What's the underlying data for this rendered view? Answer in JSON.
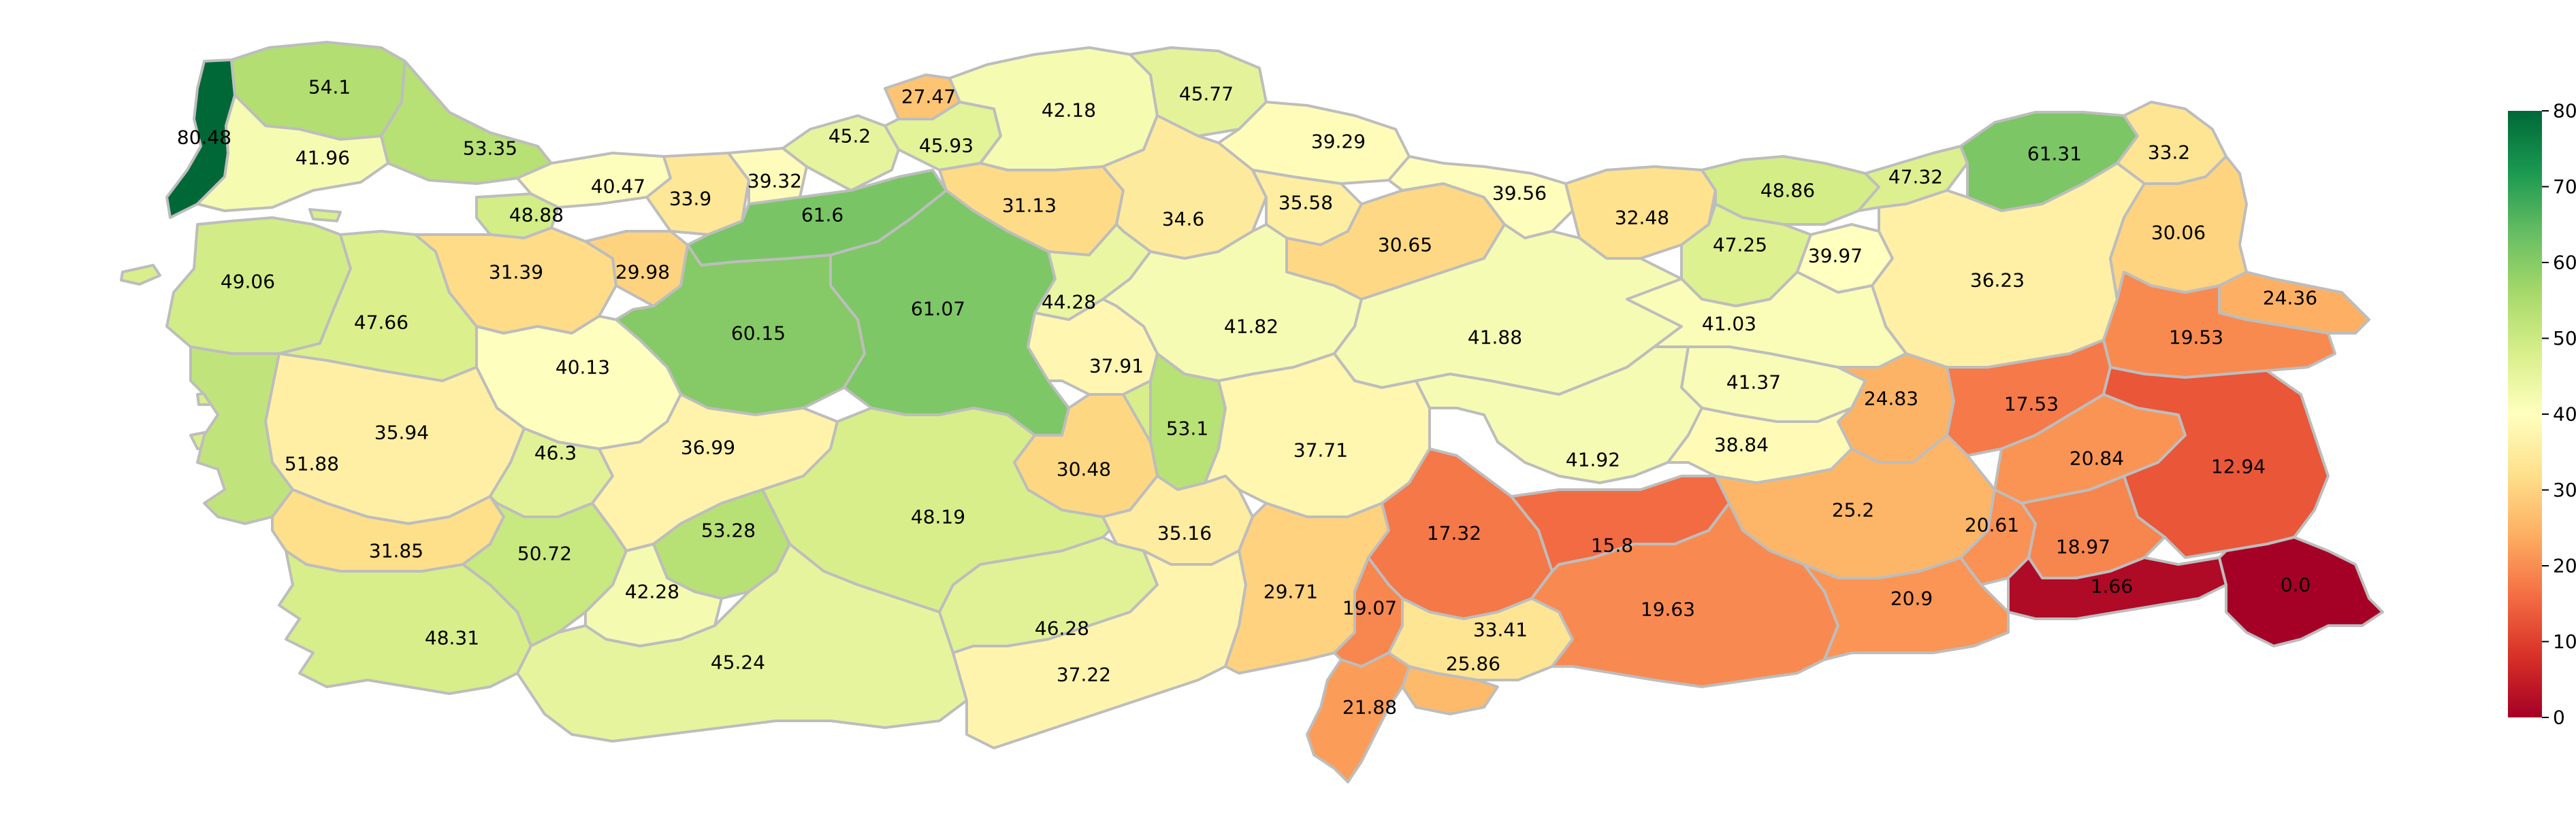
{
  "map": {
    "provinces": [
      {
        "name": "Edirne",
        "value": 80.48,
        "label": "80.48"
      },
      {
        "name": "Kirklareli",
        "value": 54.1,
        "label": "54.1"
      },
      {
        "name": "Tekirdag",
        "value": 41.96,
        "label": "41.96"
      },
      {
        "name": "Istanbul",
        "value": 53.35,
        "label": "53.35"
      },
      {
        "name": "Kocaeli",
        "value": 40.47,
        "label": "40.47"
      },
      {
        "name": "Sakarya",
        "value": 33.9,
        "label": "33.9"
      },
      {
        "name": "Duzce",
        "value": 39.32,
        "label": "39.32"
      },
      {
        "name": "Yalova",
        "value": 48.88,
        "label": "48.88"
      },
      {
        "name": "Canakkale",
        "value": 49.06,
        "label": "49.06"
      },
      {
        "name": "Balikesir",
        "value": 47.66,
        "label": "47.66"
      },
      {
        "name": "Bursa",
        "value": 31.39,
        "label": "31.39"
      },
      {
        "name": "Bilecik",
        "value": 29.98,
        "label": "29.98"
      },
      {
        "name": "Bolu",
        "value": 61.6,
        "label": "61.6"
      },
      {
        "name": "Zonguldak",
        "value": 45.2,
        "label": "45.2"
      },
      {
        "name": "Bartin",
        "value": 27.47,
        "label": "27.47"
      },
      {
        "name": "Karabuk",
        "value": 45.93,
        "label": "45.93"
      },
      {
        "name": "Kastamonu",
        "value": 42.18,
        "label": "42.18"
      },
      {
        "name": "Sinop",
        "value": 45.77,
        "label": "45.77"
      },
      {
        "name": "Samsun",
        "value": 39.29,
        "label": "39.29"
      },
      {
        "name": "Cankiri",
        "value": 31.13,
        "label": "31.13"
      },
      {
        "name": "Corum",
        "value": 34.6,
        "label": "34.6"
      },
      {
        "name": "Amasya",
        "value": 35.58,
        "label": "35.58"
      },
      {
        "name": "Tokat",
        "value": 30.65,
        "label": "30.65"
      },
      {
        "name": "Ordu",
        "value": 39.56,
        "label": "39.56"
      },
      {
        "name": "Giresun",
        "value": 32.48,
        "label": "32.48"
      },
      {
        "name": "Trabzon",
        "value": 48.86,
        "label": "48.86"
      },
      {
        "name": "Rize",
        "value": 47.32,
        "label": "47.32"
      },
      {
        "name": "Artvin",
        "value": 61.31,
        "label": "61.31"
      },
      {
        "name": "Ardahan",
        "value": 33.2,
        "label": "33.2"
      },
      {
        "name": "Gumushane",
        "value": 47.25,
        "label": "47.25"
      },
      {
        "name": "Bayburt",
        "value": 39.97,
        "label": "39.97"
      },
      {
        "name": "Erzurum",
        "value": 36.23,
        "label": "36.23"
      },
      {
        "name": "Kars",
        "value": 30.06,
        "label": "30.06"
      },
      {
        "name": "Igdir",
        "value": 24.36,
        "label": "24.36"
      },
      {
        "name": "Agri",
        "value": 19.53,
        "label": "19.53"
      },
      {
        "name": "Eskisehir",
        "value": 60.15,
        "label": "60.15"
      },
      {
        "name": "Ankara",
        "value": 61.07,
        "label": "61.07"
      },
      {
        "name": "Kirikkale",
        "value": 44.28,
        "label": "44.28"
      },
      {
        "name": "Yozgat",
        "value": 41.82,
        "label": "41.82"
      },
      {
        "name": "Sivas",
        "value": 41.88,
        "label": "41.88"
      },
      {
        "name": "Erzincan",
        "value": 41.03,
        "label": "41.03"
      },
      {
        "name": "Kirsehir",
        "value": 37.91,
        "label": "37.91"
      },
      {
        "name": "Nevsehir",
        "value": 53.1,
        "label": "53.1"
      },
      {
        "name": "Kayseri",
        "value": 37.71,
        "label": "37.71"
      },
      {
        "name": "Tunceli",
        "value": 41.37,
        "label": "41.37"
      },
      {
        "name": "Bingol",
        "value": 24.83,
        "label": "24.83"
      },
      {
        "name": "Mus",
        "value": 17.53,
        "label": "17.53"
      },
      {
        "name": "Bitlis",
        "value": 20.84,
        "label": "20.84"
      },
      {
        "name": "Van",
        "value": 12.94,
        "label": "12.94"
      },
      {
        "name": "Kutahya",
        "value": 40.13,
        "label": "40.13"
      },
      {
        "name": "Manisa",
        "value": 35.94,
        "label": "35.94"
      },
      {
        "name": "Izmir",
        "value": 51.88,
        "label": "51.88"
      },
      {
        "name": "Usak",
        "value": 46.3,
        "label": "46.3"
      },
      {
        "name": "Afyonkarahisar",
        "value": 36.99,
        "label": "36.99"
      },
      {
        "name": "Konya",
        "value": 48.19,
        "label": "48.19"
      },
      {
        "name": "Aksaray",
        "value": 30.48,
        "label": "30.48"
      },
      {
        "name": "Nigde",
        "value": 35.16,
        "label": "35.16"
      },
      {
        "name": "Malatya",
        "value": 41.92,
        "label": "41.92"
      },
      {
        "name": "Elazig",
        "value": 38.84,
        "label": "38.84"
      },
      {
        "name": "Diyarbakir",
        "value": 25.2,
        "label": "25.2"
      },
      {
        "name": "Batman",
        "value": 20.61,
        "label": "20.61"
      },
      {
        "name": "Siirt",
        "value": 18.97,
        "label": "18.97"
      },
      {
        "name": "Sirnak",
        "value": 1.66,
        "label": "1.66"
      },
      {
        "name": "Hakkari",
        "value": 0.0,
        "label": "0.0"
      },
      {
        "name": "Aydin",
        "value": 31.85,
        "label": "31.85"
      },
      {
        "name": "Denizli",
        "value": 50.72,
        "label": "50.72"
      },
      {
        "name": "Isparta",
        "value": 53.28,
        "label": "53.28"
      },
      {
        "name": "Burdur",
        "value": 42.28,
        "label": "42.28"
      },
      {
        "name": "Mugla",
        "value": 48.31,
        "label": "48.31"
      },
      {
        "name": "Antalya",
        "value": 45.24,
        "label": "45.24"
      },
      {
        "name": "Karaman",
        "value": 46.28,
        "label": "46.28"
      },
      {
        "name": "Mersin",
        "value": 37.22,
        "label": "37.22"
      },
      {
        "name": "Adana",
        "value": 29.71,
        "label": "29.71"
      },
      {
        "name": "Kahramanmaras",
        "value": 17.32,
        "label": "17.32"
      },
      {
        "name": "Adiyaman",
        "value": 15.8,
        "label": "15.8"
      },
      {
        "name": "Osmaniye",
        "value": 19.07,
        "label": "19.07"
      },
      {
        "name": "Gaziantep",
        "value": 33.41,
        "label": "33.41"
      },
      {
        "name": "Kilis",
        "value": 25.86,
        "label": "25.86"
      },
      {
        "name": "Hatay",
        "value": 21.88,
        "label": "21.88"
      },
      {
        "name": "Sanliurfa",
        "value": 19.63,
        "label": "19.63"
      },
      {
        "name": "Mardin",
        "value": 20.9,
        "label": "20.9"
      }
    ]
  },
  "colorbar": {
    "min": 0,
    "max": 80,
    "ticks": [
      "0",
      "10",
      "20",
      "30",
      "40",
      "50",
      "60",
      "70",
      "80"
    ],
    "colors": [
      "#a50026",
      "#d73027",
      "#f46d43",
      "#fdae61",
      "#fee08b",
      "#ffffbf",
      "#d9ef8b",
      "#a6d96a",
      "#66bd63",
      "#1a9850",
      "#006837"
    ]
  }
}
